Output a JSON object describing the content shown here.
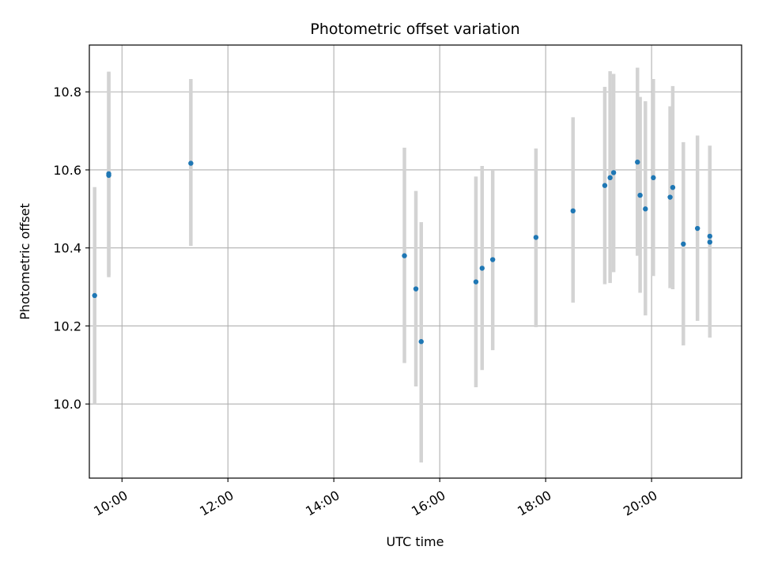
{
  "chart_data": {
    "type": "scatter",
    "title": "Photometric offset variation",
    "xlabel": "UTC time",
    "ylabel": "Photometric offset",
    "x_ticks": [
      "10:00",
      "12:00",
      "14:00",
      "16:00",
      "18:00",
      "20:00"
    ],
    "y_ticks": [
      "10.0",
      "10.2",
      "10.4",
      "10.6",
      "10.8"
    ],
    "xlim": [
      "09:23",
      "21:42"
    ],
    "ylim": [
      9.81,
      10.92
    ],
    "grid": true,
    "colors": {
      "point": "#1f77b4",
      "errorbar": "#d3d3d3",
      "grid": "#b0b0b0"
    },
    "series": [
      {
        "points": [
          {
            "x": "09:29",
            "y": 10.278,
            "ymin": 10.0,
            "ymax": 10.556
          },
          {
            "x": "09:45",
            "y": 10.586,
            "ymin": 10.325,
            "ymax": 10.852
          },
          {
            "x": "09:45",
            "y": 10.59,
            "ymin": 10.33,
            "ymax": 10.85
          },
          {
            "x": "11:18",
            "y": 10.617,
            "ymin": 10.405,
            "ymax": 10.833
          },
          {
            "x": "15:20",
            "y": 10.38,
            "ymin": 10.105,
            "ymax": 10.657
          },
          {
            "x": "15:33",
            "y": 10.295,
            "ymin": 10.045,
            "ymax": 10.546
          },
          {
            "x": "15:39",
            "y": 10.16,
            "ymin": 9.85,
            "ymax": 10.466
          },
          {
            "x": "16:41",
            "y": 10.313,
            "ymin": 10.043,
            "ymax": 10.583
          },
          {
            "x": "16:48",
            "y": 10.348,
            "ymin": 10.087,
            "ymax": 10.61
          },
          {
            "x": "17:00",
            "y": 10.37,
            "ymin": 10.138,
            "ymax": 10.6
          },
          {
            "x": "17:49",
            "y": 10.427,
            "ymin": 10.197,
            "ymax": 10.655
          },
          {
            "x": "18:31",
            "y": 10.495,
            "ymin": 10.26,
            "ymax": 10.735
          },
          {
            "x": "19:07",
            "y": 10.56,
            "ymin": 10.307,
            "ymax": 10.813
          },
          {
            "x": "19:13",
            "y": 10.58,
            "ymin": 10.31,
            "ymax": 10.853
          },
          {
            "x": "19:17",
            "y": 10.593,
            "ymin": 10.338,
            "ymax": 10.846
          },
          {
            "x": "19:44",
            "y": 10.62,
            "ymin": 10.38,
            "ymax": 10.862
          },
          {
            "x": "19:47",
            "y": 10.535,
            "ymin": 10.285,
            "ymax": 10.787
          },
          {
            "x": "19:53",
            "y": 10.5,
            "ymin": 10.227,
            "ymax": 10.776
          },
          {
            "x": "20:02",
            "y": 10.58,
            "ymin": 10.328,
            "ymax": 10.833
          },
          {
            "x": "20:21",
            "y": 10.53,
            "ymin": 10.297,
            "ymax": 10.763
          },
          {
            "x": "20:24",
            "y": 10.555,
            "ymin": 10.294,
            "ymax": 10.815
          },
          {
            "x": "20:36",
            "y": 10.41,
            "ymin": 10.15,
            "ymax": 10.671
          },
          {
            "x": "20:52",
            "y": 10.45,
            "ymin": 10.213,
            "ymax": 10.688
          },
          {
            "x": "21:06",
            "y": 10.415,
            "ymin": 10.17,
            "ymax": 10.662
          },
          {
            "x": "21:06",
            "y": 10.43,
            "ymin": 10.198,
            "ymax": 10.662
          }
        ]
      }
    ]
  }
}
